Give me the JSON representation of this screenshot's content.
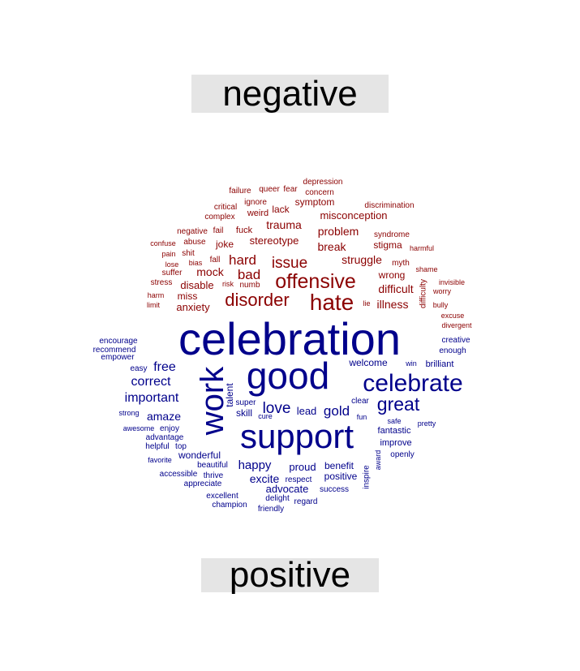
{
  "header": {
    "negative_label": "negative"
  },
  "footer": {
    "positive_label": "positive"
  },
  "colors": {
    "negative": "#8b0000",
    "positive": "#00008b",
    "label_bg": "#e5e5e5"
  },
  "negative_words": [
    "depression",
    "failure",
    "queer",
    "fear",
    "concern",
    "critical",
    "ignore",
    "symptom",
    "discrimination",
    "lack",
    "weird",
    "complex",
    "misconception",
    "trauma",
    "negative",
    "fail",
    "fuck",
    "syndrome",
    "problem",
    "confuse",
    "abuse",
    "stereotype",
    "stigma",
    "harmful",
    "break",
    "pain",
    "shit",
    "joke",
    "myth",
    "fall",
    "struggle",
    "lose",
    "bias",
    "hard",
    "issue",
    "shame",
    "suffer",
    "wrong",
    "offensive",
    "stress",
    "mock",
    "risk",
    "numb",
    "difficulty",
    "invisible",
    "bad",
    "disable",
    "difficult",
    "worry",
    "harm",
    "miss",
    "disorder",
    "hate",
    "lie",
    "illness",
    "limit",
    "anxiety",
    "bully",
    "excuse",
    "divergent"
  ],
  "positive_words": [
    "celebration",
    "encourage",
    "creative",
    "recommend",
    "enough",
    "empower",
    "welcome",
    "win",
    "brilliant",
    "good",
    "easy",
    "free",
    "celebrate",
    "correct",
    "talent",
    "work",
    "important",
    "clear",
    "great",
    "love",
    "super",
    "lead",
    "gold",
    "skill",
    "cure",
    "fun",
    "amaze",
    "strong",
    "safe",
    "pretty",
    "awesome",
    "enjoy",
    "support",
    "fantastic",
    "advantage",
    "improve",
    "helpful",
    "top",
    "award",
    "openly",
    "favorite",
    "wonderful",
    "beautiful",
    "happy",
    "benefit",
    "proud",
    "inspire",
    "accessible",
    "thrive",
    "excite",
    "positive",
    "appreciate",
    "respect",
    "advocate",
    "success",
    "excellent",
    "delight",
    "regard",
    "champion",
    "friendly"
  ]
}
